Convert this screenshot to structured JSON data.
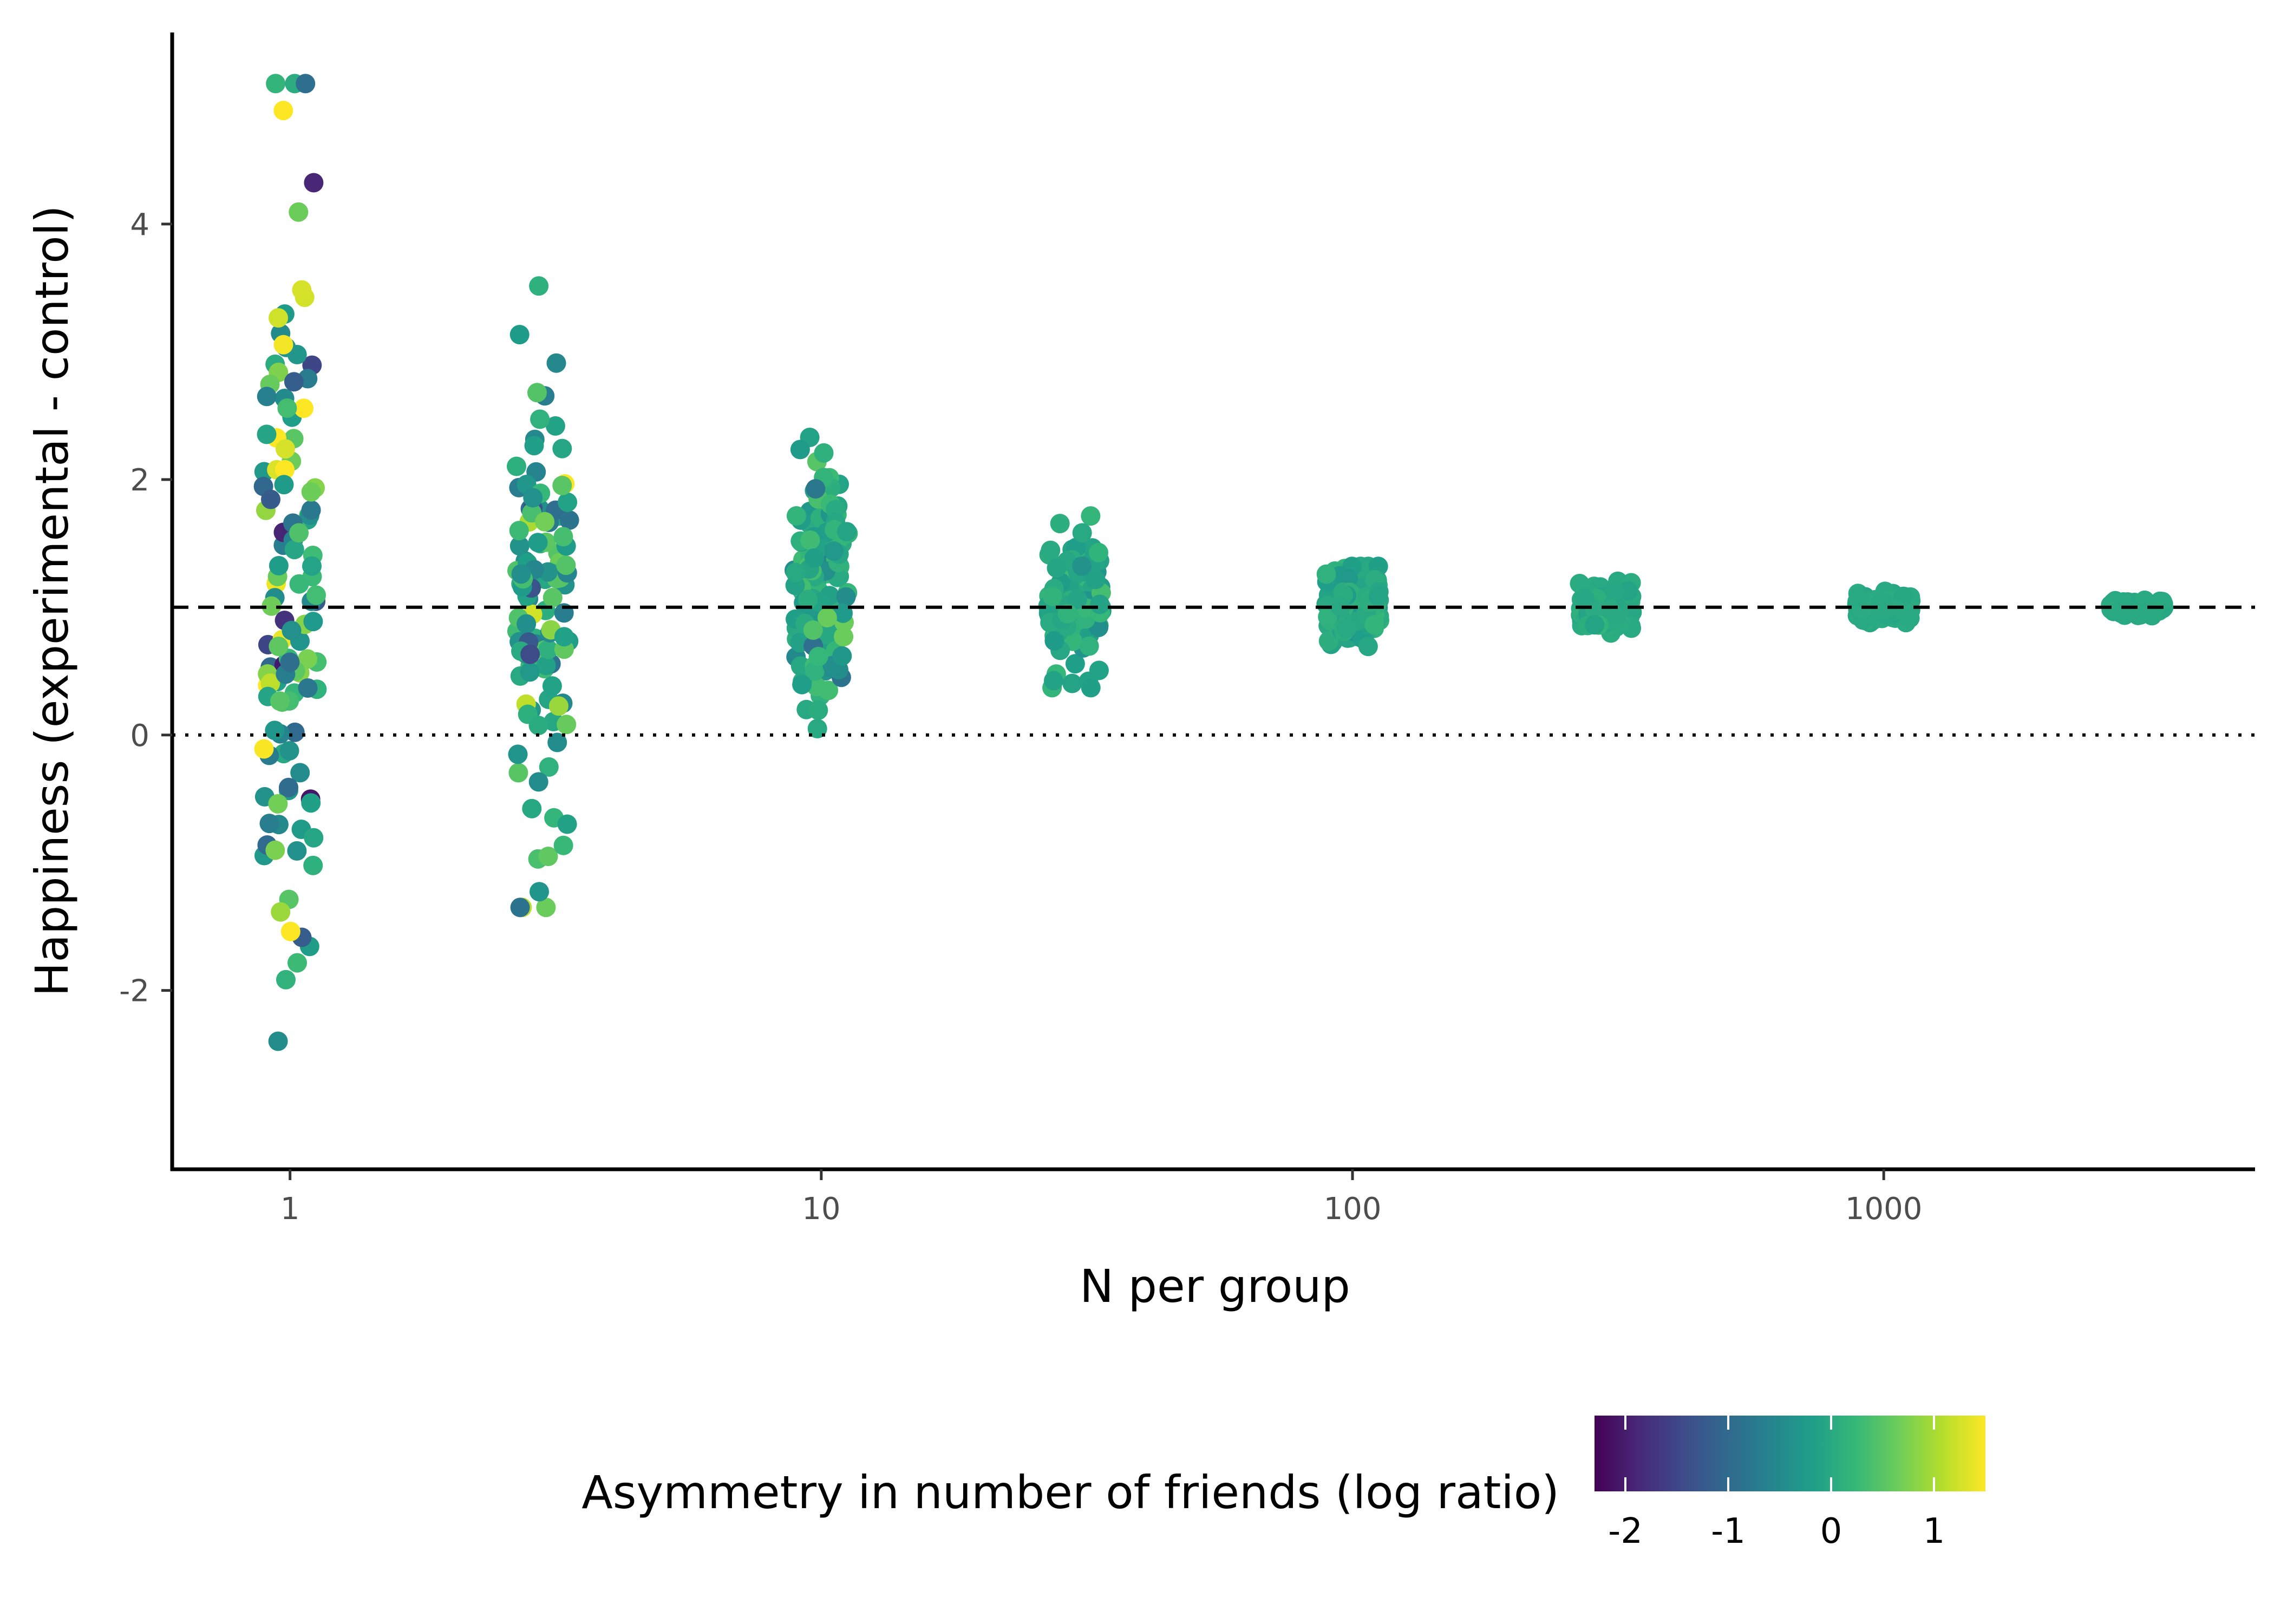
{
  "chart_data": {
    "type": "scatter",
    "title": "",
    "xlabel": "N per group",
    "ylabel": "Happiness (experimental - control)",
    "x_scale": "log10",
    "x_ticks": [
      1,
      10,
      100,
      1000
    ],
    "x_tick_labels": [
      "1",
      "10",
      "100",
      "1000"
    ],
    "xlim": [
      0.6,
      5000
    ],
    "y_ticks": [
      -2,
      0,
      2,
      4
    ],
    "y_tick_labels": [
      "-2",
      "0",
      "2",
      "4"
    ],
    "ylim": [
      -3.4,
      5.5
    ],
    "reference_lines": [
      {
        "y": 1,
        "style": "dashed"
      },
      {
        "y": 0,
        "style": "dotted"
      }
    ],
    "grid": false,
    "groups": [
      {
        "n": 1,
        "count": 120,
        "mean": 1.0,
        "spread": 1.65,
        "color_spread": 0.85,
        "y_min": -3.05,
        "y_max": 5.1
      },
      {
        "n": 3,
        "count": 110,
        "mean": 1.0,
        "spread": 0.95,
        "color_spread": 0.55,
        "y_min": -1.35,
        "y_max": 4.0
      },
      {
        "n": 10,
        "count": 120,
        "mean": 1.0,
        "spread": 0.52,
        "color_spread": 0.3,
        "y_min": 0.05,
        "y_max": 2.33
      },
      {
        "n": 30,
        "count": 130,
        "mean": 1.0,
        "spread": 0.28,
        "color_spread": 0.18,
        "y_min": 0.37,
        "y_max": 1.9
      },
      {
        "n": 100,
        "count": 140,
        "mean": 1.0,
        "spread": 0.17,
        "color_spread": 0.1,
        "y_min": 0.52,
        "y_max": 1.32
      },
      {
        "n": 300,
        "count": 140,
        "mean": 1.0,
        "spread": 0.09,
        "color_spread": 0.05,
        "y_min": 0.78,
        "y_max": 1.27
      },
      {
        "n": 1000,
        "count": 140,
        "mean": 1.0,
        "spread": 0.05,
        "color_spread": 0.03,
        "y_min": 0.88,
        "y_max": 1.14
      },
      {
        "n": 3000,
        "count": 140,
        "mean": 1.0,
        "spread": 0.025,
        "color_spread": 0.015,
        "y_min": 0.93,
        "y_max": 1.08
      }
    ],
    "legend": {
      "title": "Asymmetry in number of friends (log ratio)",
      "position": "bottom",
      "type": "colorbar",
      "colormap": "viridis",
      "range": [
        -2.3,
        1.5
      ],
      "ticks": [
        -2,
        -1,
        0,
        1
      ],
      "tick_labels": [
        "-2",
        "-1",
        "0",
        "1"
      ]
    }
  },
  "colors": {
    "viridis": [
      "#440154",
      "#482878",
      "#3E4A89",
      "#31688E",
      "#26828E",
      "#1F9E89",
      "#35B779",
      "#6DCD59",
      "#B4DE2C",
      "#FDE725"
    ],
    "axis": "#000000",
    "tick_text": "#4d4d4d",
    "background": "#ffffff"
  }
}
